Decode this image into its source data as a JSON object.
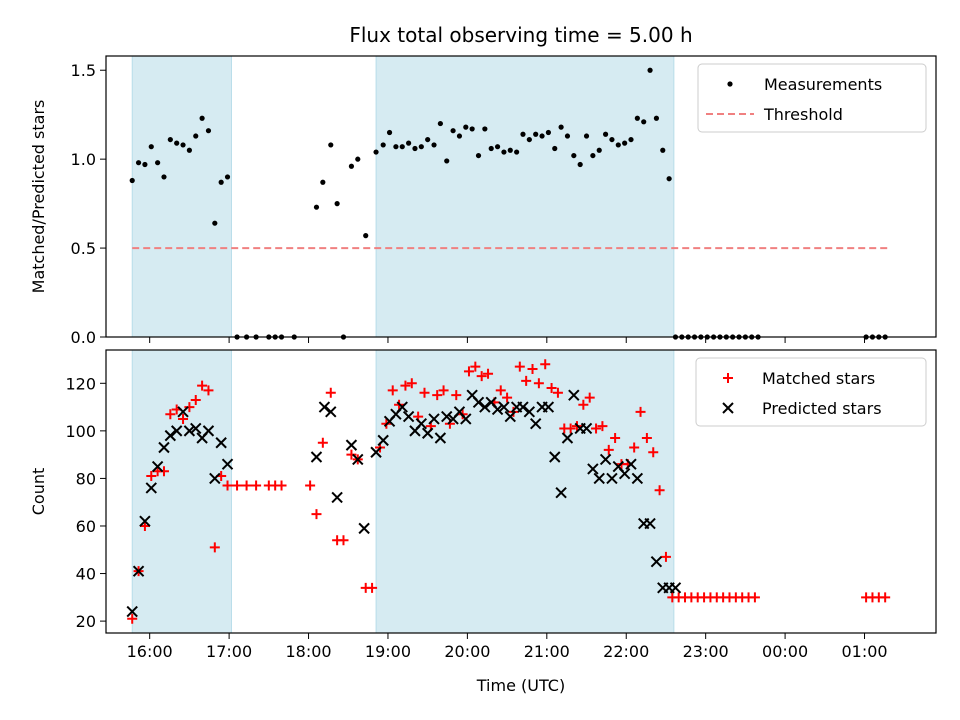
{
  "chart_data": {
    "title": "Flux total observing time = 5.00 h",
    "xlabel": "Time (UTC)",
    "x_ticks": [
      {
        "h": 16,
        "label": "16:00"
      },
      {
        "h": 17,
        "label": "17:00"
      },
      {
        "h": 18,
        "label": "18:00"
      },
      {
        "h": 19,
        "label": "19:00"
      },
      {
        "h": 20,
        "label": "20:00"
      },
      {
        "h": 21,
        "label": "21:00"
      },
      {
        "h": 22,
        "label": "22:00"
      },
      {
        "h": 23,
        "label": "23:00"
      },
      {
        "h": 24,
        "label": "00:00"
      },
      {
        "h": 25,
        "label": "01:00"
      }
    ],
    "xlim_hours": [
      15.45,
      25.9
    ],
    "observing_windows_hours": [
      [
        15.78,
        17.03
      ],
      [
        18.85,
        22.6
      ]
    ],
    "panels": [
      {
        "id": "ratio",
        "type": "scatter",
        "ylabel": "Matched/Predicted stars",
        "ylim": [
          0,
          1.58
        ],
        "y_ticks": [
          {
            "v": 0,
            "label": "0.0"
          },
          {
            "v": 0.5,
            "label": "0.5"
          },
          {
            "v": 1.0,
            "label": "1.0"
          },
          {
            "v": 1.5,
            "label": "1.5"
          }
        ],
        "legend": {
          "position": "top-right",
          "entries": [
            "Measurements",
            "Threshold"
          ]
        },
        "threshold": {
          "value": 0.5,
          "x_range_hours": [
            15.78,
            25.3
          ],
          "color": "#f08080"
        },
        "measurements": {
          "color": "#000000",
          "x": [
            15.78,
            15.86,
            15.94,
            16.02,
            16.1,
            16.18,
            16.26,
            16.34,
            16.42,
            16.5,
            16.58,
            16.66,
            16.74,
            16.82,
            16.9,
            16.98,
            17.1,
            17.22,
            17.34,
            17.5,
            17.58,
            17.66,
            17.82,
            18.1,
            18.18,
            18.28,
            18.36,
            18.44,
            18.54,
            18.62,
            18.72,
            18.85,
            18.94,
            19.02,
            19.1,
            19.18,
            19.26,
            19.34,
            19.42,
            19.5,
            19.58,
            19.66,
            19.74,
            19.82,
            19.9,
            19.98,
            20.06,
            20.14,
            20.22,
            20.3,
            20.38,
            20.46,
            20.54,
            20.62,
            20.7,
            20.78,
            20.86,
            20.94,
            21.02,
            21.1,
            21.18,
            21.26,
            21.34,
            21.42,
            21.5,
            21.58,
            21.66,
            21.74,
            21.82,
            21.9,
            21.98,
            22.06,
            22.14,
            22.22,
            22.3,
            22.38,
            22.46,
            22.54,
            22.62,
            22.7,
            22.78,
            22.86,
            22.94,
            23.02,
            23.1,
            23.18,
            23.26,
            23.34,
            23.42,
            23.5,
            23.58,
            23.66,
            25.02,
            25.1,
            25.18,
            25.26
          ],
          "y": [
            0.88,
            0.98,
            0.97,
            1.07,
            0.98,
            0.9,
            1.11,
            1.09,
            1.08,
            1.05,
            1.13,
            1.23,
            1.16,
            0.64,
            0.87,
            0.9,
            0,
            0,
            0,
            0,
            0,
            0,
            0,
            0.73,
            0.87,
            1.08,
            0.75,
            0,
            0.96,
            1.0,
            0.57,
            1.04,
            1.08,
            1.15,
            1.07,
            1.07,
            1.09,
            1.06,
            1.07,
            1.11,
            1.08,
            1.2,
            0.99,
            1.16,
            1.13,
            1.18,
            1.17,
            1.02,
            1.17,
            1.06,
            1.07,
            1.04,
            1.05,
            1.04,
            1.14,
            1.11,
            1.14,
            1.13,
            1.15,
            1.06,
            1.18,
            1.13,
            1.02,
            0.97,
            1.13,
            1.02,
            1.05,
            1.14,
            1.11,
            1.08,
            1.09,
            1.11,
            1.23,
            1.21,
            1.5,
            1.23,
            1.05,
            0.89,
            0,
            0,
            0,
            0,
            0,
            0,
            0,
            0,
            0,
            0,
            0,
            0,
            0,
            0,
            0,
            0,
            0,
            0
          ]
        }
      },
      {
        "id": "counts",
        "type": "scatter",
        "ylabel": "Count",
        "ylim": [
          15,
          134
        ],
        "y_ticks": [
          {
            "v": 20,
            "label": "20"
          },
          {
            "v": 40,
            "label": "40"
          },
          {
            "v": 60,
            "label": "60"
          },
          {
            "v": 80,
            "label": "80"
          },
          {
            "v": 100,
            "label": "100"
          },
          {
            "v": 120,
            "label": "120"
          }
        ],
        "legend": {
          "position": "top-right",
          "entries": [
            "Matched stars",
            "Predicted stars"
          ]
        },
        "matched": {
          "color": "#ff0000",
          "x": [
            15.78,
            15.86,
            15.94,
            16.02,
            16.1,
            16.18,
            16.26,
            16.34,
            16.42,
            16.5,
            16.58,
            16.66,
            16.74,
            16.82,
            16.9,
            16.98,
            17.1,
            17.22,
            17.34,
            17.5,
            17.58,
            17.66,
            18.02,
            18.1,
            18.18,
            18.28,
            18.36,
            18.44,
            18.54,
            18.62,
            18.72,
            18.8,
            18.9,
            18.98,
            19.06,
            19.14,
            19.22,
            19.3,
            19.38,
            19.46,
            19.54,
            19.62,
            19.7,
            19.78,
            19.86,
            19.94,
            20.02,
            20.1,
            20.18,
            20.26,
            20.34,
            20.42,
            20.5,
            20.58,
            20.66,
            20.74,
            20.82,
            20.9,
            20.98,
            21.06,
            21.14,
            21.22,
            21.3,
            21.38,
            21.46,
            21.54,
            21.62,
            21.7,
            21.78,
            21.86,
            21.94,
            22.02,
            22.1,
            22.18,
            22.26,
            22.34,
            22.42,
            22.5,
            22.58,
            22.66,
            22.74,
            22.82,
            22.9,
            22.98,
            23.06,
            23.14,
            23.22,
            23.3,
            23.38,
            23.46,
            23.54,
            23.62,
            25.02,
            25.1,
            25.18,
            25.26
          ],
          "y": [
            21,
            41,
            60,
            81,
            83,
            83,
            107,
            109,
            105,
            110,
            113,
            119,
            117,
            51,
            81,
            77,
            77,
            77,
            77,
            77,
            77,
            77,
            77,
            65,
            95,
            116,
            54,
            54,
            90,
            88,
            34,
            34,
            93,
            103,
            117,
            111,
            119,
            120,
            106,
            116,
            102,
            115,
            117,
            103,
            115,
            107,
            125,
            127,
            123,
            124,
            112,
            117,
            114,
            108,
            127,
            121,
            126,
            120,
            128,
            118,
            116,
            101,
            101,
            102,
            111,
            114,
            101,
            102,
            92,
            97,
            86,
            86,
            93,
            108,
            97,
            91,
            75,
            47,
            30,
            30,
            30,
            30,
            30,
            30,
            30,
            30,
            30,
            30,
            30,
            30,
            30,
            30,
            30,
            30,
            30,
            30
          ]
        },
        "predicted": {
          "color": "#000000",
          "x": [
            15.78,
            15.86,
            15.94,
            16.02,
            16.1,
            16.18,
            16.26,
            16.34,
            16.42,
            16.5,
            16.58,
            16.66,
            16.74,
            16.82,
            16.9,
            16.98,
            18.1,
            18.2,
            18.28,
            18.36,
            18.54,
            18.62,
            18.7,
            18.85,
            18.94,
            19.02,
            19.1,
            19.18,
            19.26,
            19.34,
            19.42,
            19.5,
            19.58,
            19.66,
            19.74,
            19.82,
            19.9,
            19.98,
            20.06,
            20.14,
            20.22,
            20.3,
            20.38,
            20.46,
            20.54,
            20.62,
            20.7,
            20.78,
            20.86,
            20.94,
            21.02,
            21.1,
            21.18,
            21.26,
            21.34,
            21.42,
            21.5,
            21.58,
            21.66,
            21.74,
            21.82,
            21.9,
            21.98,
            22.06,
            22.14,
            22.22,
            22.3,
            22.38,
            22.46,
            22.54,
            22.62
          ],
          "y": [
            24,
            41,
            62,
            76,
            85,
            93,
            98,
            100,
            108,
            100,
            101,
            97,
            100,
            80,
            95,
            86,
            89,
            110,
            108,
            72,
            94,
            88,
            59,
            91,
            96,
            104,
            107,
            110,
            106,
            100,
            103,
            99,
            105,
            97,
            106,
            105,
            108,
            105,
            115,
            112,
            110,
            112,
            109,
            110,
            106,
            110,
            110,
            108,
            103,
            110,
            110,
            89,
            74,
            97,
            115,
            101,
            101,
            84,
            80,
            88,
            80,
            85,
            82,
            86,
            80,
            61,
            61,
            45,
            34,
            34,
            34
          ]
        }
      }
    ]
  }
}
